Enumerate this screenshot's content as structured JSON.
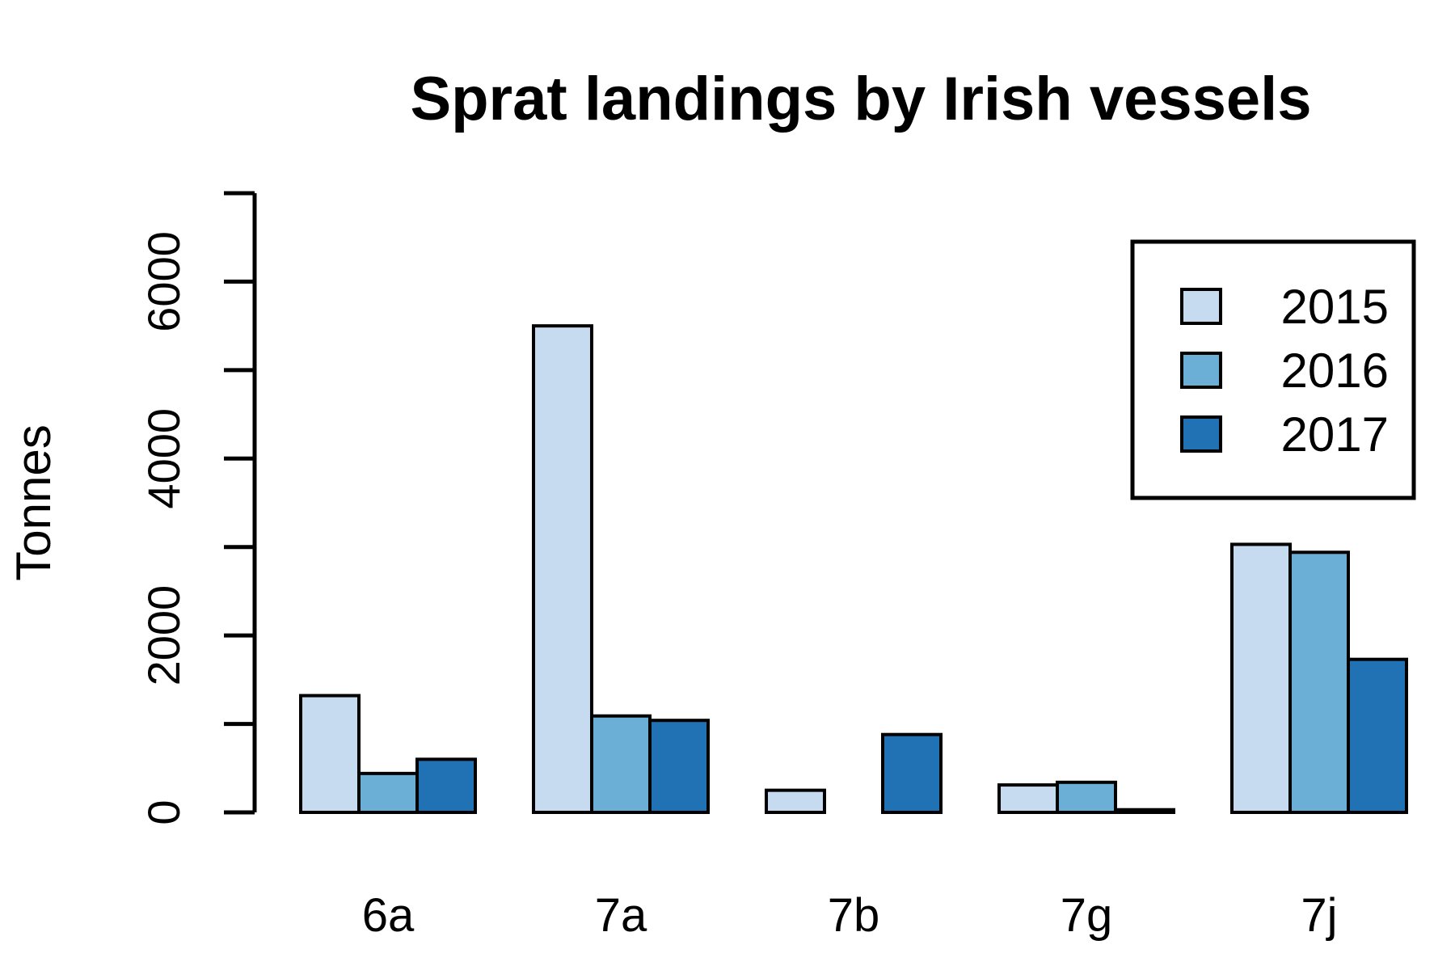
{
  "chart_data": {
    "type": "bar",
    "title": "Sprat landings by Irish vessels",
    "xlabel": "",
    "ylabel": "Tonnes",
    "categories": [
      "6a",
      "7a",
      "7b",
      "7g",
      "7j"
    ],
    "series": [
      {
        "name": "2015",
        "values": [
          1320,
          5500,
          250,
          310,
          3030
        ]
      },
      {
        "name": "2016",
        "values": [
          440,
          1090,
          0,
          340,
          2940
        ]
      },
      {
        "name": "2017",
        "values": [
          600,
          1040,
          880,
          30,
          1730
        ]
      }
    ],
    "colors": [
      "#c6dbef",
      "#6baed6",
      "#2171b5"
    ],
    "ylim": [
      0,
      7000
    ],
    "yticks": [
      0,
      1000,
      2000,
      3000,
      4000,
      5000,
      6000,
      7000
    ],
    "ytick_labels": [
      "0",
      "",
      "2000",
      "",
      "4000",
      "",
      "6000",
      ""
    ],
    "grid": false,
    "legend_position": "top-right"
  }
}
